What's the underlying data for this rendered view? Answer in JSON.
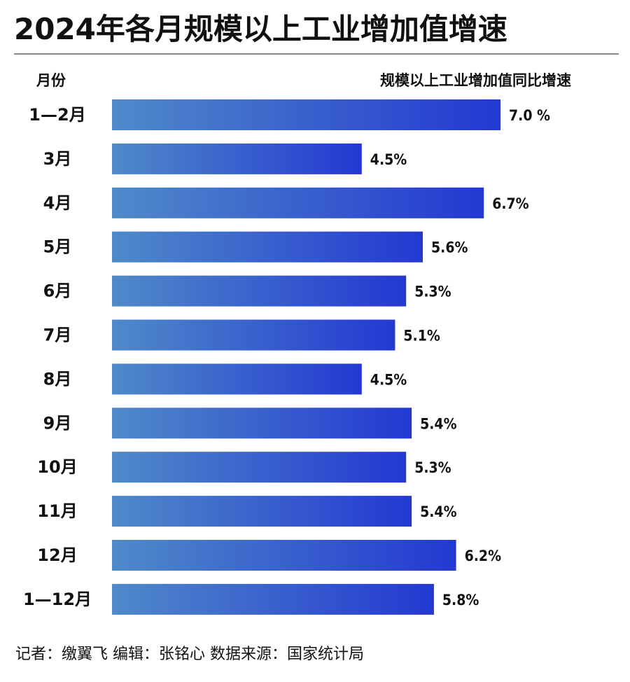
{
  "title": "2024年各月规模以上工业增加值增速",
  "header": {
    "left": "月份",
    "right": "规模以上工业增加值同比增速"
  },
  "footer": "记者：缴翼飞  编辑：张铭心  数据来源：国家统计局",
  "colors": {
    "bar_gradient_start": "#4f8ac9",
    "bar_gradient_end": "#2438d2",
    "rule": "#8a8a8a",
    "text": "#111111"
  },
  "chart_data": {
    "type": "bar",
    "orientation": "horizontal",
    "categories": [
      "1—2月",
      "3月",
      "4月",
      "5月",
      "6月",
      "7月",
      "8月",
      "9月",
      "10月",
      "11月",
      "12月",
      "1—12月"
    ],
    "values": [
      7.0,
      4.5,
      6.7,
      5.6,
      5.3,
      5.1,
      4.5,
      5.4,
      5.3,
      5.4,
      6.2,
      5.8
    ],
    "value_labels": [
      "7.0 %",
      "4.5%",
      "6.7%",
      "5.6%",
      "5.3%",
      "5.1%",
      "4.5%",
      "5.4%",
      "5.3%",
      "5.4%",
      "6.2%",
      "5.8%"
    ],
    "xlim": [
      0,
      7.0
    ],
    "grid": false,
    "legend": "none"
  }
}
